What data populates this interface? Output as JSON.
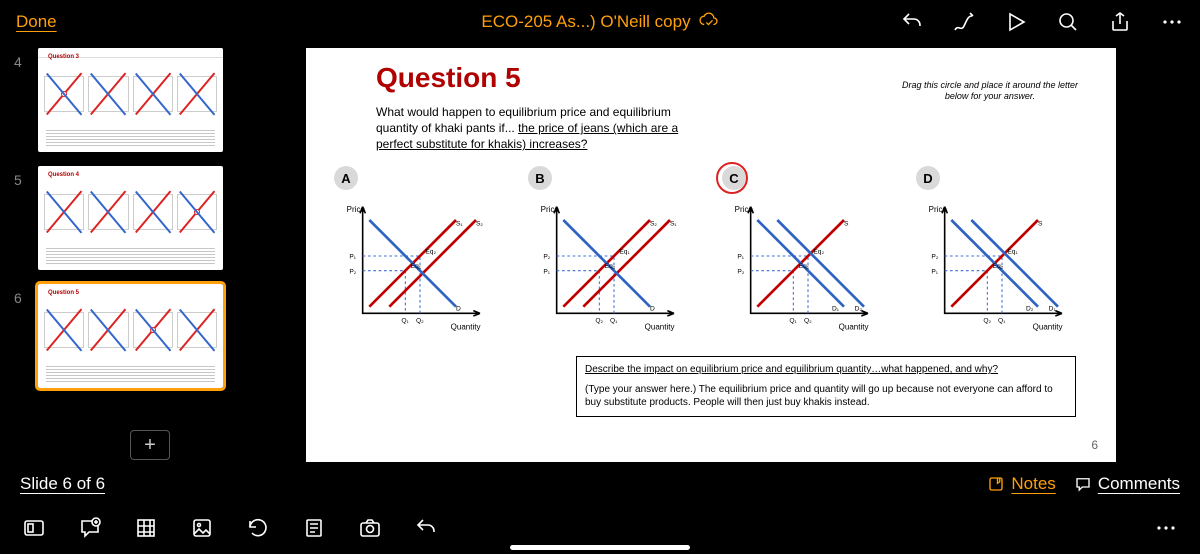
{
  "topbar": {
    "done": "Done",
    "title": "ECO-205 As...) O'Neill copy"
  },
  "thumbs": [
    {
      "n": "4",
      "title": "Question 3",
      "selected": false,
      "partial_top": true,
      "dot_graph": 0
    },
    {
      "n": "5",
      "title": "Question 4",
      "selected": false,
      "partial_top": false,
      "dot_graph": 3
    },
    {
      "n": "6",
      "title": "Question 5",
      "selected": true,
      "partial_top": false,
      "dot_graph": 2
    }
  ],
  "slide": {
    "title": "Question 5",
    "instruction": "Drag this circle and place it around the letter below for your answer.",
    "prompt_plain": "What would happen to equilibrium price and equilibrium quantity of khaki pants if... ",
    "prompt_underlined": "the price of jeans (which are a perfect substitute for khakis) increases?",
    "graph_letters": [
      "A",
      "B",
      "C",
      "D"
    ],
    "answer_index": 2,
    "axis_y": "Price",
    "axis_x": "Quantity",
    "p_labels": [
      "P₂",
      "P₁"
    ],
    "q_labels": [
      "Q₁",
      "Q₂"
    ],
    "eq_labels": [
      "Eq₁",
      "Eq₂"
    ],
    "curve_s": "S",
    "curve_s1": "S₁",
    "curve_s2": "S₂",
    "curve_d": "D",
    "curve_d1": "D₁",
    "curve_d2": "D₂",
    "colors": {
      "supply": "#c00000",
      "demand": "#2e63c4",
      "axis": "#000000",
      "guide": "#3a6fd1"
    },
    "answer_header": "Describe the impact on equilibrium price and equilibrium quantity…what happened, and why?",
    "answer_body": "(Type your answer here.) The equilibrium price and quantity will go up because not everyone can afford to buy substitute products. People will then just buy khakis instead.",
    "page_num": "6"
  },
  "status": {
    "slide_count": "Slide 6 of 6",
    "notes": "Notes",
    "comments": "Comments"
  }
}
